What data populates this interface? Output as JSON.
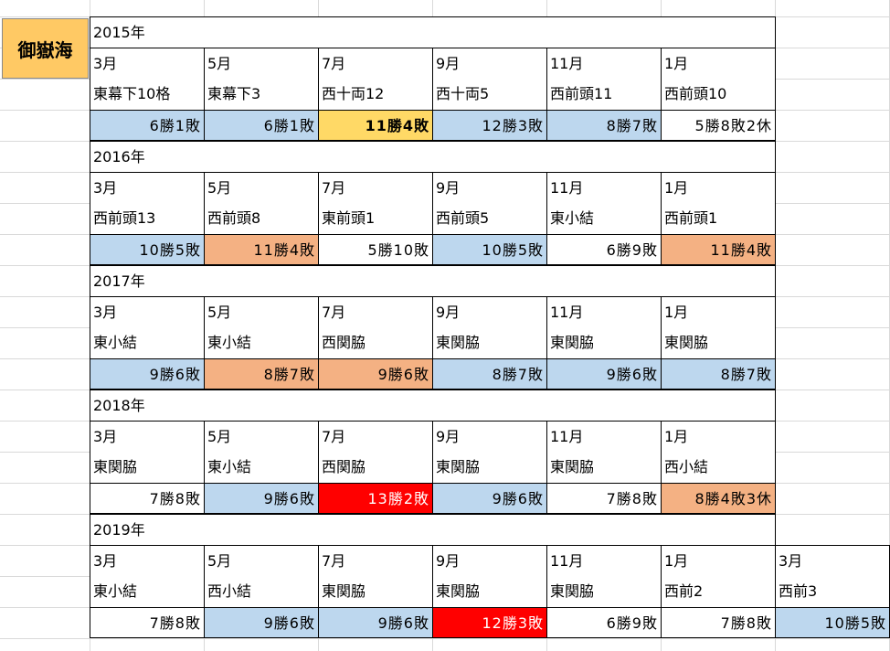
{
  "title": "御嶽海",
  "years": [
    {
      "year": "2015年",
      "months": [
        "3月",
        "5月",
        "7月",
        "9月",
        "11月",
        "1月"
      ],
      "ranks": [
        "東幕下10格",
        "東幕下3",
        "西十両12",
        "西十両5",
        "西前頭11",
        "西前頭10"
      ],
      "results": [
        {
          "text": "6勝1敗",
          "fill": "#bdd7ee"
        },
        {
          "text": "6勝1敗",
          "fill": "#bdd7ee"
        },
        {
          "text": "11勝4敗",
          "fill": "#ffd966"
        },
        {
          "text": "12勝3敗",
          "fill": "#bdd7ee"
        },
        {
          "text": "8勝7敗",
          "fill": "#bdd7ee"
        },
        {
          "text": "5勝8敗2休",
          "fill": "#ffffff"
        }
      ]
    },
    {
      "year": "2016年",
      "months": [
        "3月",
        "5月",
        "7月",
        "9月",
        "11月",
        "1月"
      ],
      "ranks": [
        "西前頭13",
        "西前頭8",
        "東前頭1",
        "西前頭5",
        "東小結",
        "西前頭1"
      ],
      "results": [
        {
          "text": "10勝5敗",
          "fill": "#bdd7ee"
        },
        {
          "text": "11勝4敗",
          "fill": "#f4b183"
        },
        {
          "text": "5勝10敗",
          "fill": "#ffffff"
        },
        {
          "text": "10勝5敗",
          "fill": "#bdd7ee"
        },
        {
          "text": "6勝9敗",
          "fill": "#ffffff"
        },
        {
          "text": "11勝4敗",
          "fill": "#f4b183"
        }
      ]
    },
    {
      "year": "2017年",
      "months": [
        "3月",
        "5月",
        "7月",
        "9月",
        "11月",
        "1月"
      ],
      "ranks": [
        "東小結",
        "東小結",
        "西関脇",
        "東関脇",
        "東関脇",
        "東関脇"
      ],
      "results": [
        {
          "text": "9勝6敗",
          "fill": "#bdd7ee"
        },
        {
          "text": "8勝7敗",
          "fill": "#f4b183"
        },
        {
          "text": "9勝6敗",
          "fill": "#f4b183"
        },
        {
          "text": "8勝7敗",
          "fill": "#bdd7ee"
        },
        {
          "text": "9勝6敗",
          "fill": "#bdd7ee"
        },
        {
          "text": "8勝7敗",
          "fill": "#bdd7ee"
        }
      ]
    },
    {
      "year": "2018年",
      "months": [
        "3月",
        "5月",
        "7月",
        "9月",
        "11月",
        "1月"
      ],
      "ranks": [
        "東関脇",
        "東小結",
        "西関脇",
        "東関脇",
        "東関脇",
        "西小結"
      ],
      "results": [
        {
          "text": "7勝8敗",
          "fill": "#ffffff"
        },
        {
          "text": "9勝6敗",
          "fill": "#bdd7ee"
        },
        {
          "text": "13勝2敗",
          "fill": "#ff0000"
        },
        {
          "text": "9勝6敗",
          "fill": "#bdd7ee"
        },
        {
          "text": "7勝8敗",
          "fill": "#ffffff"
        },
        {
          "text": "8勝4敗3休",
          "fill": "#f4b183"
        }
      ]
    },
    {
      "year": "2019年",
      "months": [
        "3月",
        "5月",
        "7月",
        "9月",
        "11月",
        "1月",
        "3月"
      ],
      "ranks": [
        "東小結",
        "西小結",
        "東関脇",
        "東関脇",
        "東関脇",
        "西前2",
        "西前3"
      ],
      "results": [
        {
          "text": "7勝8敗",
          "fill": "#ffffff"
        },
        {
          "text": "9勝6敗",
          "fill": "#bdd7ee"
        },
        {
          "text": "9勝6敗",
          "fill": "#bdd7ee"
        },
        {
          "text": "12勝3敗",
          "fill": "#ff0000"
        },
        {
          "text": "6勝9敗",
          "fill": "#ffffff"
        },
        {
          "text": "7勝8敗",
          "fill": "#ffffff"
        },
        {
          "text": "10勝5敗",
          "fill": "#bdd7ee"
        }
      ]
    }
  ]
}
